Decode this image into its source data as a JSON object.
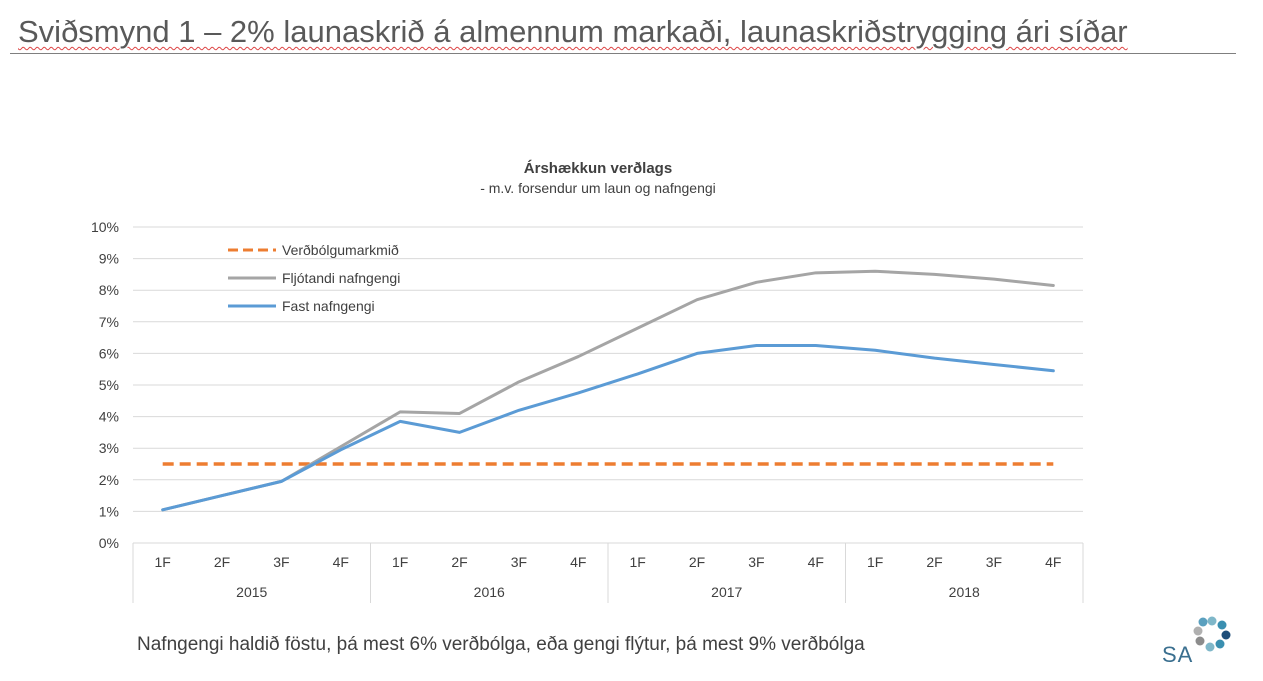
{
  "slide": {
    "title": "Sviðsmynd 1 – 2% launaskrið á almennum markaði, launaskriðstrygging ári síðar",
    "footer_note": "Nafngengi haldið föstu, þá mest 6% verðbólga, eða gengi flýtur, þá mest 9% verðbólga",
    "logo_text": "SA"
  },
  "chart_data": {
    "type": "line",
    "title": "Árshækkun verðlags",
    "subtitle": "- m.v. forsendur um laun og nafngengi",
    "categories": [
      "1F",
      "2F",
      "3F",
      "4F",
      "1F",
      "2F",
      "3F",
      "4F",
      "1F",
      "2F",
      "3F",
      "4F",
      "1F",
      "2F",
      "3F",
      "4F"
    ],
    "groups": [
      {
        "label": "2015",
        "start": 0,
        "end": 3
      },
      {
        "label": "2016",
        "start": 4,
        "end": 7
      },
      {
        "label": "2017",
        "start": 8,
        "end": 11
      },
      {
        "label": "2018",
        "start": 12,
        "end": 15
      }
    ],
    "yticks": [
      "0%",
      "1%",
      "2%",
      "3%",
      "4%",
      "5%",
      "6%",
      "7%",
      "8%",
      "9%",
      "10%"
    ],
    "ylim": [
      0,
      10
    ],
    "grid": true,
    "legend_position": "top-left",
    "series": [
      {
        "name": "Verðbólgumarkmið",
        "color": "#ED7D31",
        "dash": true,
        "values": [
          2.5,
          2.5,
          2.5,
          2.5,
          2.5,
          2.5,
          2.5,
          2.5,
          2.5,
          2.5,
          2.5,
          2.5,
          2.5,
          2.5,
          2.5,
          2.5
        ]
      },
      {
        "name": "Fljótandi nafngengi",
        "color": "#A5A5A5",
        "dash": false,
        "values": [
          1.05,
          1.5,
          1.95,
          3.05,
          4.15,
          4.1,
          5.1,
          5.9,
          6.8,
          7.7,
          8.25,
          8.55,
          8.6,
          8.5,
          8.35,
          8.15
        ]
      },
      {
        "name": "Fast nafngengi",
        "color": "#5B9BD5",
        "dash": false,
        "values": [
          1.05,
          1.5,
          1.95,
          2.95,
          3.85,
          3.5,
          4.2,
          4.75,
          5.35,
          6.0,
          6.25,
          6.25,
          6.1,
          5.85,
          5.65,
          5.45
        ]
      }
    ]
  }
}
